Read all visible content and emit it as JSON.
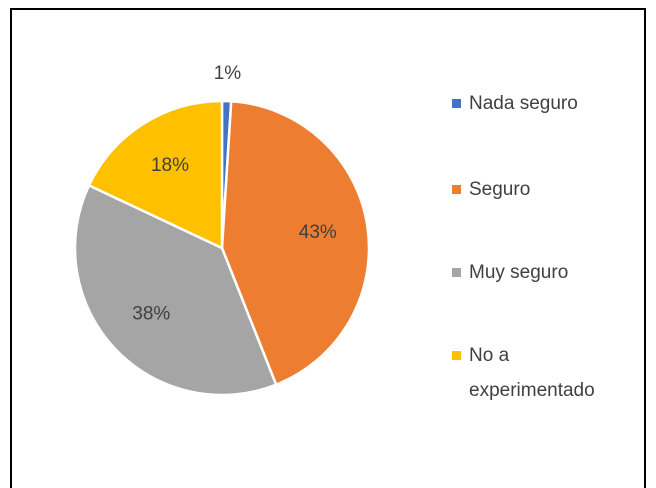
{
  "chart_data": {
    "type": "pie",
    "categories": [
      "Nada seguro",
      "Seguro",
      "Muy seguro",
      "No a experimentado"
    ],
    "values": [
      1,
      43,
      38,
      18
    ],
    "value_labels": [
      "1%",
      "43%",
      "38%",
      "18%"
    ],
    "colors": [
      "#4472c4",
      "#ed7d31",
      "#a5a5a5",
      "#ffc000"
    ],
    "legend": "right"
  }
}
